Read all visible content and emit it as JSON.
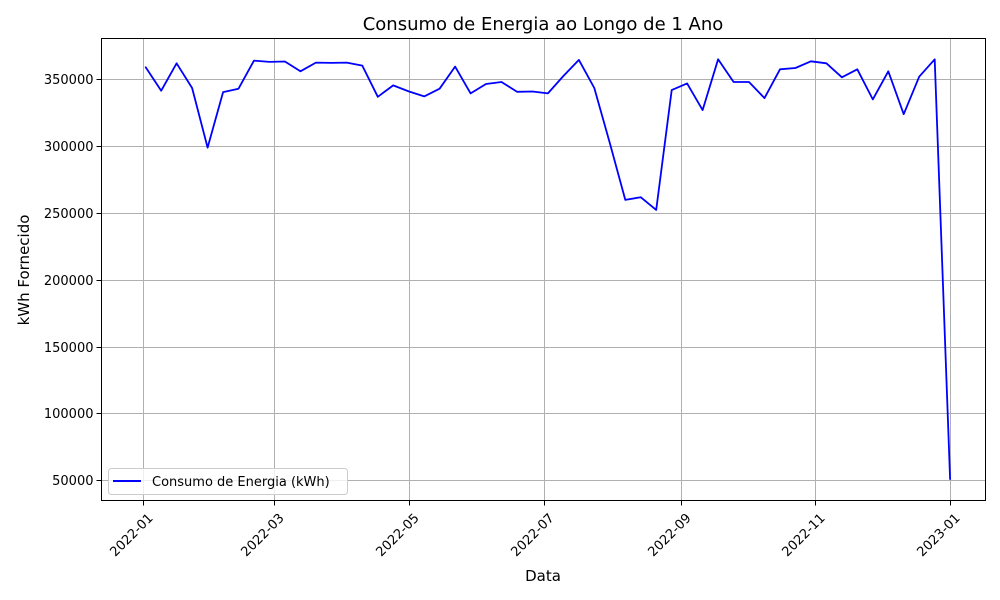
{
  "chart_data": {
    "type": "line",
    "title": "Consumo de Energia ao Longo de 1 Ano",
    "xlabel": "Data",
    "ylabel": "kWh Fornecido",
    "xlim": [
      "2021-12-13",
      "2023-01-17"
    ],
    "ylim": [
      35000,
      380000
    ],
    "grid": true,
    "legend_position": "lower-left",
    "x_ticks": [
      "2022-01",
      "2022-03",
      "2022-05",
      "2022-07",
      "2022-09",
      "2022-11",
      "2023-01"
    ],
    "x_tick_dates": [
      "2022-01-01",
      "2022-03-01",
      "2022-05-01",
      "2022-07-01",
      "2022-09-01",
      "2022-11-01",
      "2023-01-01"
    ],
    "y_ticks": [
      50000,
      100000,
      150000,
      200000,
      250000,
      300000,
      350000
    ],
    "y_tick_labels": [
      "50000",
      "100000",
      "150000",
      "200000",
      "250000",
      "300000",
      "350000"
    ],
    "series": [
      {
        "name": "Consumo de Energia (kWh)",
        "color": "#0000ff",
        "x": [
          "2022-01-02",
          "2022-01-09",
          "2022-01-16",
          "2022-01-23",
          "2022-01-30",
          "2022-02-06",
          "2022-02-13",
          "2022-02-20",
          "2022-02-27",
          "2022-03-06",
          "2022-03-13",
          "2022-03-20",
          "2022-03-27",
          "2022-04-03",
          "2022-04-10",
          "2022-04-17",
          "2022-04-24",
          "2022-05-01",
          "2022-05-08",
          "2022-05-15",
          "2022-05-22",
          "2022-05-29",
          "2022-06-05",
          "2022-06-12",
          "2022-06-19",
          "2022-06-26",
          "2022-07-03",
          "2022-07-10",
          "2022-07-17",
          "2022-07-24",
          "2022-07-31",
          "2022-08-07",
          "2022-08-14",
          "2022-08-21",
          "2022-08-28",
          "2022-09-04",
          "2022-09-11",
          "2022-09-18",
          "2022-09-25",
          "2022-10-02",
          "2022-10-09",
          "2022-10-16",
          "2022-10-23",
          "2022-10-30",
          "2022-11-06",
          "2022-11-13",
          "2022-11-20",
          "2022-11-27",
          "2022-12-04",
          "2022-12-11",
          "2022-12-18",
          "2022-12-25",
          "2023-01-01"
        ],
        "values": [
          358500,
          341000,
          361500,
          343000,
          298500,
          340000,
          342500,
          363500,
          362500,
          362800,
          355500,
          362000,
          361800,
          362000,
          359800,
          336500,
          345000,
          340500,
          336800,
          342500,
          359000,
          339000,
          346000,
          347500,
          340200,
          340400,
          339000,
          352000,
          364000,
          343000,
          302000,
          259500,
          261500,
          252000,
          341500,
          346500,
          326500,
          364500,
          347500,
          347500,
          335500,
          357000,
          358000,
          363000,
          361500,
          351000,
          357000,
          334500,
          355500,
          323500,
          351500,
          364500,
          51000
        ]
      }
    ]
  }
}
